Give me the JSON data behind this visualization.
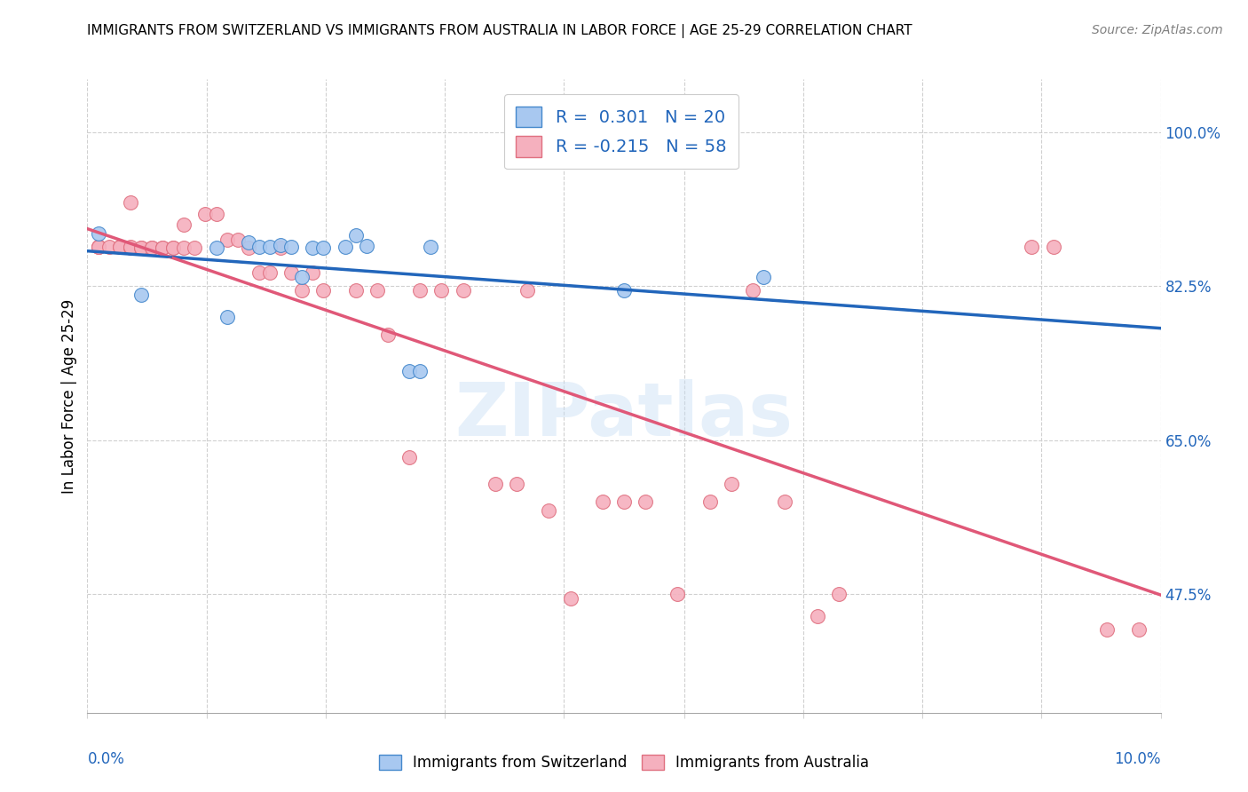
{
  "title": "IMMIGRANTS FROM SWITZERLAND VS IMMIGRANTS FROM AUSTRALIA IN LABOR FORCE | AGE 25-29 CORRELATION CHART",
  "source": "Source: ZipAtlas.com",
  "ylabel": "In Labor Force | Age 25-29",
  "legend_label1": "Immigrants from Switzerland",
  "legend_label2": "Immigrants from Australia",
  "R_switzerland": 0.301,
  "N_switzerland": 20,
  "R_australia": -0.215,
  "N_australia": 58,
  "color_switzerland_fill": "#a8c8f0",
  "color_switzerland_edge": "#4488cc",
  "color_switzerland_line": "#2266bb",
  "color_australia_fill": "#f5b0be",
  "color_australia_edge": "#e07080",
  "color_australia_line": "#e05878",
  "ytick_vals": [
    0.475,
    0.65,
    0.825,
    1.0
  ],
  "ytick_labels": [
    "47.5%",
    "65.0%",
    "82.5%",
    "100.0%"
  ],
  "xtick_vals": [
    0.0,
    0.0111,
    0.0222,
    0.0333,
    0.0444,
    0.0556,
    0.0667,
    0.0778,
    0.0889,
    0.1
  ],
  "xmin": 0.0,
  "xmax": 0.1,
  "ymin": 0.34,
  "ymax": 1.06,
  "watermark": "ZIPatlas",
  "sw_x": [
    0.001,
    0.005,
    0.012,
    0.013,
    0.015,
    0.016,
    0.017,
    0.018,
    0.019,
    0.02,
    0.021,
    0.022,
    0.024,
    0.025,
    0.026,
    0.03,
    0.031,
    0.032,
    0.05,
    0.063
  ],
  "sw_y": [
    0.885,
    0.815,
    0.868,
    0.79,
    0.875,
    0.87,
    0.87,
    0.872,
    0.87,
    0.835,
    0.868,
    0.869,
    0.87,
    0.883,
    0.871,
    0.728,
    0.728,
    0.87,
    0.82,
    0.835
  ],
  "au_x": [
    0.001,
    0.001,
    0.001,
    0.002,
    0.003,
    0.003,
    0.004,
    0.004,
    0.004,
    0.005,
    0.005,
    0.006,
    0.006,
    0.007,
    0.007,
    0.008,
    0.008,
    0.009,
    0.009,
    0.01,
    0.011,
    0.012,
    0.013,
    0.014,
    0.015,
    0.016,
    0.017,
    0.018,
    0.019,
    0.02,
    0.021,
    0.022,
    0.025,
    0.027,
    0.028,
    0.03,
    0.031,
    0.033,
    0.035,
    0.038,
    0.04,
    0.041,
    0.043,
    0.045,
    0.048,
    0.05,
    0.052,
    0.055,
    0.058,
    0.06,
    0.062,
    0.065,
    0.068,
    0.07,
    0.088,
    0.09,
    0.095,
    0.098
  ],
  "au_y": [
    0.87,
    0.87,
    0.87,
    0.87,
    0.87,
    0.87,
    0.868,
    0.92,
    0.87,
    0.868,
    0.868,
    0.868,
    0.868,
    0.868,
    0.868,
    0.868,
    0.868,
    0.895,
    0.868,
    0.868,
    0.907,
    0.907,
    0.878,
    0.878,
    0.868,
    0.84,
    0.84,
    0.868,
    0.84,
    0.82,
    0.84,
    0.82,
    0.82,
    0.82,
    0.77,
    0.63,
    0.82,
    0.82,
    0.82,
    0.6,
    0.6,
    0.82,
    0.57,
    0.47,
    0.58,
    0.58,
    0.58,
    0.475,
    0.58,
    0.6,
    0.82,
    0.58,
    0.45,
    0.475,
    0.87,
    0.87,
    0.435,
    0.435
  ]
}
